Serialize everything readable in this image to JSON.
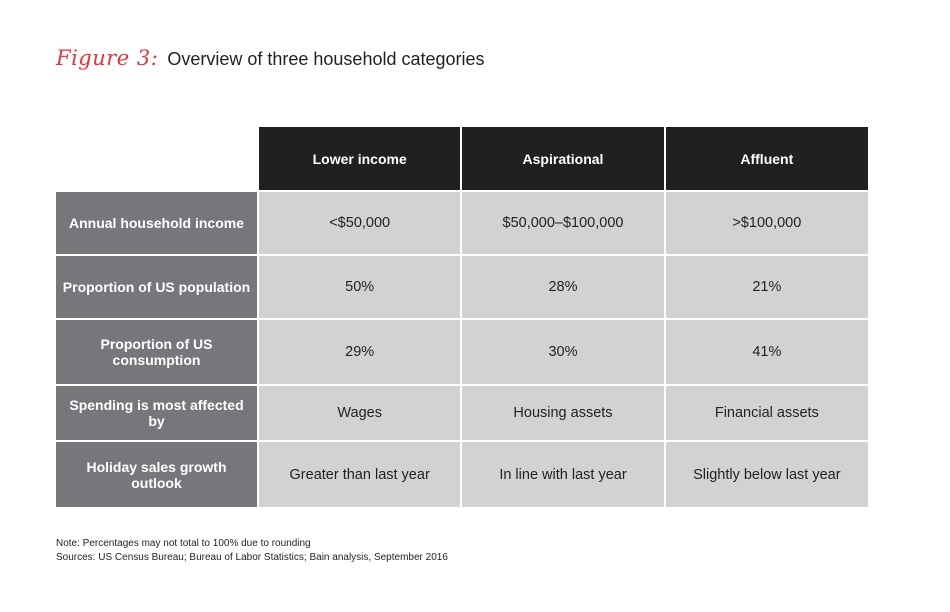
{
  "colors": {
    "figure_label": "#e4353a",
    "column_header_bg": "#221f20",
    "row_header_bg": "#76777a",
    "cell_bg": "#d1d2d4"
  },
  "figure": {
    "label": "Figure 3:",
    "title": "Overview of three household categories"
  },
  "chart_data": {
    "type": "table",
    "title": "Overview of three household categories",
    "columns": [
      "Lower income",
      "Aspirational",
      "Affluent"
    ],
    "rows": [
      {
        "label": "Annual household income",
        "values": [
          "<$50,000",
          "$50,000–$100,000",
          ">$100,000"
        ]
      },
      {
        "label": "Proportion of US population",
        "values": [
          "50%",
          "28%",
          "21%"
        ]
      },
      {
        "label": "Proportion of US consumption",
        "values": [
          "29%",
          "30%",
          "41%"
        ]
      },
      {
        "label": "Spending is most affected by",
        "values": [
          "Wages",
          "Housing assets",
          "Financial assets"
        ]
      },
      {
        "label": "Holiday sales growth outlook",
        "values": [
          "Greater than last year",
          "In line with last year",
          "Slightly below last year"
        ]
      }
    ]
  },
  "notes": {
    "note": "Note: Percentages may not total to 100% due to rounding",
    "sources": "Sources: US Census Bureau; Bureau of Labor Statistics; Bain analysis, September 2016"
  }
}
